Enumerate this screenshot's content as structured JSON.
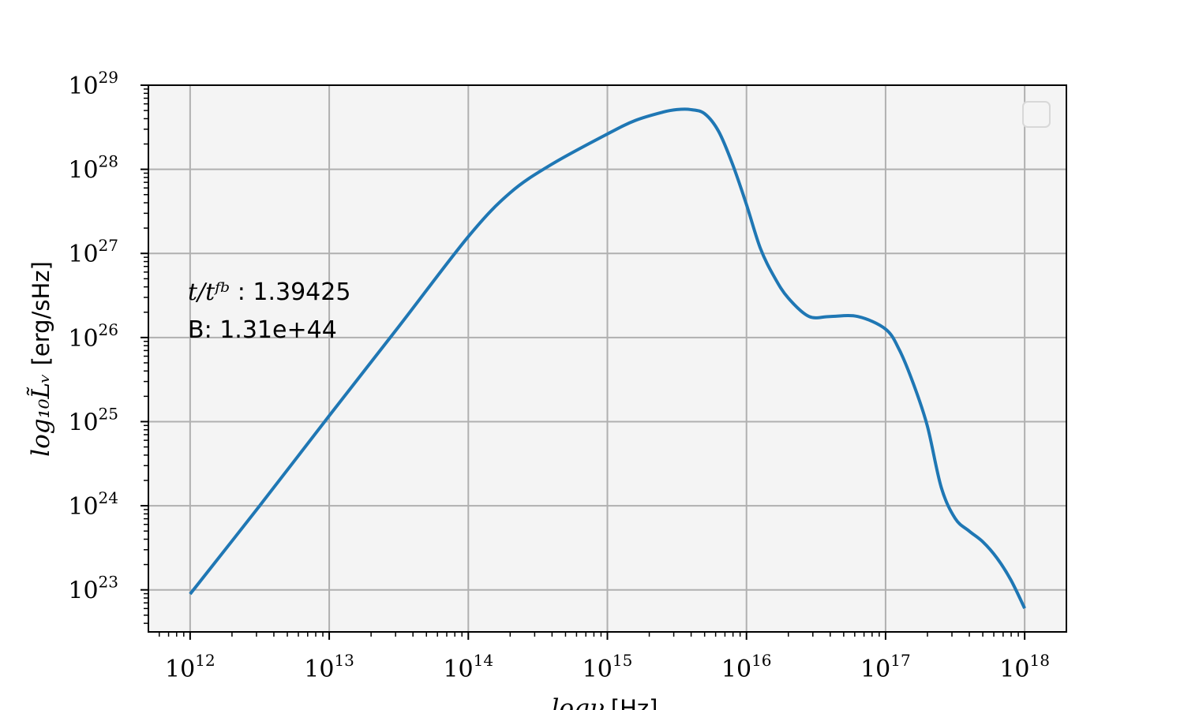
{
  "chart_data": {
    "type": "line",
    "x_scale": "log",
    "y_scale": "log",
    "xlim_log10": [
      11.7,
      18.3
    ],
    "ylim_log10": [
      22.5,
      29.0
    ],
    "grid": true,
    "legend": {
      "placement": "top-right",
      "entries": []
    },
    "xlabel": {
      "math": "logν",
      "unit": "[Hz]"
    },
    "ylabel": {
      "math": "log₁₀L̃ᵥ",
      "unit": "[erg/sHz]"
    },
    "x_ticks": [
      {
        "base": "10",
        "exp": "12",
        "log10": 12
      },
      {
        "base": "10",
        "exp": "13",
        "log10": 13
      },
      {
        "base": "10",
        "exp": "14",
        "log10": 14
      },
      {
        "base": "10",
        "exp": "15",
        "log10": 15
      },
      {
        "base": "10",
        "exp": "16",
        "log10": 16
      },
      {
        "base": "10",
        "exp": "17",
        "log10": 17
      },
      {
        "base": "10",
        "exp": "18",
        "log10": 18
      }
    ],
    "y_ticks": [
      {
        "base": "10",
        "exp": "23",
        "log10": 23
      },
      {
        "base": "10",
        "exp": "24",
        "log10": 24
      },
      {
        "base": "10",
        "exp": "25",
        "log10": 25
      },
      {
        "base": "10",
        "exp": "26",
        "log10": 26
      },
      {
        "base": "10",
        "exp": "27",
        "log10": 27
      },
      {
        "base": "10",
        "exp": "28",
        "log10": 28
      },
      {
        "base": "10",
        "exp": "29",
        "log10": 29
      }
    ],
    "annotations": [
      {
        "math": "t/tᶠᵇ",
        "text": " : 1.39425"
      },
      {
        "math": "",
        "text": "B: 1.31e+44"
      }
    ],
    "series": [
      {
        "color": "#1f77b4",
        "log10_x": [
          12.0,
          12.5,
          13.0,
          13.5,
          14.0,
          14.3,
          14.6,
          15.0,
          15.2,
          15.4,
          15.5,
          15.6,
          15.7,
          15.8,
          15.9,
          16.0,
          16.1,
          16.2,
          16.3,
          16.45,
          16.6,
          16.8,
          17.0,
          17.1,
          17.2,
          17.3,
          17.4,
          17.5,
          17.6,
          17.7,
          17.8,
          17.9,
          18.0
        ],
        "log10_y": [
          22.95,
          24.0,
          25.07,
          26.13,
          27.2,
          27.72,
          28.06,
          28.42,
          28.58,
          28.68,
          28.71,
          28.71,
          28.66,
          28.45,
          28.06,
          27.58,
          27.06,
          26.72,
          26.47,
          26.25,
          26.25,
          26.25,
          26.1,
          25.85,
          25.45,
          24.95,
          24.22,
          23.85,
          23.7,
          23.57,
          23.38,
          23.12,
          22.78
        ]
      }
    ]
  }
}
